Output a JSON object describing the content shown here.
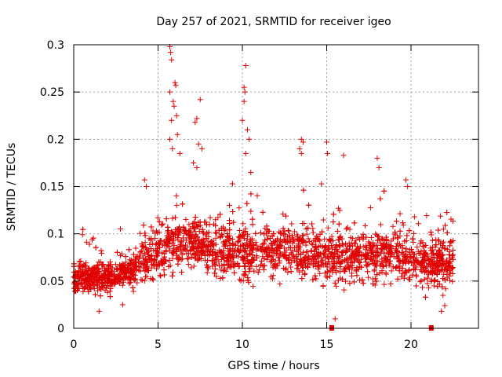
{
  "chart_data": {
    "type": "scatter",
    "title": "Day 257 of 2021, SRMTID for receiver igeo",
    "xlabel": "GPS time / hours",
    "ylabel": "SRMTID / TECUs",
    "xlim": [
      0,
      24
    ],
    "ylim": [
      0,
      0.3
    ],
    "xticks": [
      0,
      5,
      10,
      15,
      20
    ],
    "xtick_labels": [
      "0",
      "5",
      "10",
      "15",
      "20"
    ],
    "yticks": [
      0,
      0.05,
      0.1,
      0.15,
      0.2,
      0.25,
      0.3
    ],
    "ytick_labels": [
      "0",
      "0.05",
      "0.1",
      "0.15",
      "0.2",
      "0.25",
      "0.3"
    ],
    "grid": true,
    "marker": "plus",
    "series_color": "#e00000",
    "baseline_profile": [
      {
        "x": 0.0,
        "y": 0.055
      },
      {
        "x": 2.0,
        "y": 0.053
      },
      {
        "x": 3.5,
        "y": 0.062
      },
      {
        "x": 4.5,
        "y": 0.075
      },
      {
        "x": 6.0,
        "y": 0.09
      },
      {
        "x": 7.5,
        "y": 0.088
      },
      {
        "x": 9.0,
        "y": 0.082
      },
      {
        "x": 11.0,
        "y": 0.08
      },
      {
        "x": 13.0,
        "y": 0.083
      },
      {
        "x": 15.0,
        "y": 0.075
      },
      {
        "x": 17.0,
        "y": 0.078
      },
      {
        "x": 19.0,
        "y": 0.08
      },
      {
        "x": 21.0,
        "y": 0.07
      },
      {
        "x": 22.5,
        "y": 0.07
      }
    ],
    "notable_points": [
      {
        "x": 5.7,
        "y": 0.298
      },
      {
        "x": 5.75,
        "y": 0.292
      },
      {
        "x": 5.8,
        "y": 0.284
      },
      {
        "x": 6.0,
        "y": 0.26
      },
      {
        "x": 6.05,
        "y": 0.257
      },
      {
        "x": 5.7,
        "y": 0.25
      },
      {
        "x": 5.9,
        "y": 0.24
      },
      {
        "x": 5.95,
        "y": 0.235
      },
      {
        "x": 5.8,
        "y": 0.22
      },
      {
        "x": 6.1,
        "y": 0.225
      },
      {
        "x": 5.7,
        "y": 0.2
      },
      {
        "x": 5.85,
        "y": 0.19
      },
      {
        "x": 6.15,
        "y": 0.205
      },
      {
        "x": 6.3,
        "y": 0.185
      },
      {
        "x": 7.5,
        "y": 0.242
      },
      {
        "x": 7.3,
        "y": 0.222
      },
      {
        "x": 7.2,
        "y": 0.218
      },
      {
        "x": 7.4,
        "y": 0.195
      },
      {
        "x": 7.6,
        "y": 0.19
      },
      {
        "x": 7.1,
        "y": 0.175
      },
      {
        "x": 7.3,
        "y": 0.17
      },
      {
        "x": 10.2,
        "y": 0.278
      },
      {
        "x": 10.1,
        "y": 0.255
      },
      {
        "x": 10.15,
        "y": 0.25
      },
      {
        "x": 10.1,
        "y": 0.24
      },
      {
        "x": 10.0,
        "y": 0.22
      },
      {
        "x": 10.3,
        "y": 0.21
      },
      {
        "x": 10.4,
        "y": 0.2
      },
      {
        "x": 10.2,
        "y": 0.185
      },
      {
        "x": 10.5,
        "y": 0.165
      },
      {
        "x": 13.5,
        "y": 0.2
      },
      {
        "x": 13.6,
        "y": 0.197
      },
      {
        "x": 13.4,
        "y": 0.19
      },
      {
        "x": 13.5,
        "y": 0.185
      },
      {
        "x": 15.0,
        "y": 0.197
      },
      {
        "x": 15.05,
        "y": 0.185
      },
      {
        "x": 16.0,
        "y": 0.183
      },
      {
        "x": 18.0,
        "y": 0.18
      },
      {
        "x": 18.1,
        "y": 0.17
      },
      {
        "x": 19.7,
        "y": 0.157
      },
      {
        "x": 19.8,
        "y": 0.15
      },
      {
        "x": 4.2,
        "y": 0.157
      },
      {
        "x": 4.3,
        "y": 0.15
      },
      {
        "x": 15.5,
        "y": 0.01
      },
      {
        "x": 21.8,
        "y": 0.018
      },
      {
        "x": 22.0,
        "y": 0.024
      },
      {
        "x": 1.5,
        "y": 0.018
      },
      {
        "x": 2.9,
        "y": 0.025
      }
    ],
    "square_markers": [
      {
        "x": 15.3,
        "y": 0.0
      },
      {
        "x": 21.2,
        "y": 0.0
      }
    ],
    "x_end": 22.5,
    "approx_point_count": 3200
  }
}
